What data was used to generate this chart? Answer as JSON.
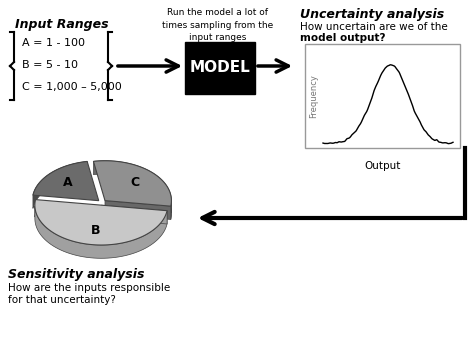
{
  "input_title": "Input Ranges",
  "input_lines": [
    "A = 1 - 100",
    "B = 5 - 10",
    "C = 1,000 – 5,000"
  ],
  "model_text": "MODEL",
  "center_text": "Run the model a lot of\ntimes sampling from the\ninput ranges",
  "title_uncertainty": "Uncertainty analysis",
  "subtitle_uncertainty1": "How uncertain are we of the",
  "subtitle_uncertainty2": "model output?",
  "output_label": "Output",
  "freq_label": "Frequency",
  "title_sensitivity": "Sensitivity analysis",
  "subtitle_sensitivity1": "How are the inputs responsible",
  "subtitle_sensitivity2": "for that uncertainty?",
  "pie_slices": [
    0.2,
    0.5,
    0.3
  ],
  "pie_labels": [
    "A",
    "B",
    "C"
  ],
  "pie_colors_top": [
    "#6b6b6b",
    "#c8c8c8",
    "#909090"
  ],
  "pie_colors_side": [
    "#4a4a4a",
    "#a0a0a0",
    "#686868"
  ],
  "pie_explode": [
    0.06,
    0.06,
    0.06
  ],
  "startangle": 100
}
